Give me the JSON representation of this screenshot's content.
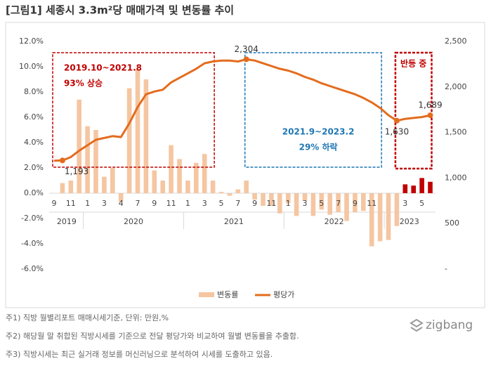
{
  "chart_data": {
    "type": "bar_line",
    "title": "[그림1] 세종시 3.3m²당 매매가격 및 변동률 추이",
    "categories": [
      "9",
      null,
      "11",
      null,
      "1",
      null,
      "3",
      null,
      "4",
      null,
      "7",
      null,
      "9",
      null,
      "11",
      null,
      "1",
      null,
      "3",
      null,
      "5",
      null,
      "7",
      null,
      "9",
      null,
      "11",
      null,
      "1",
      null,
      "3",
      null,
      "5",
      null,
      "7",
      null,
      "9",
      null,
      "11",
      null,
      null,
      null,
      "3",
      null,
      "5",
      null
    ],
    "groups": [
      {
        "label": "2019",
        "start": 0,
        "end": 3
      },
      {
        "label": "2020",
        "start": 4,
        "end": 15
      },
      {
        "label": "2021",
        "start": 16,
        "end": 27
      },
      {
        "label": "2022",
        "start": 28,
        "end": 39
      },
      {
        "label": "2023",
        "start": 40,
        "end": 45
      }
    ],
    "series": [
      {
        "name": "변동률",
        "kind": "bar",
        "color": "#f5c6a2",
        "colors": [
          "#f5c6a2",
          "#f5c6a2",
          "#f5c6a2",
          "#f5c6a2",
          "#f5c6a2",
          "#f5c6a2",
          "#f5c6a2",
          "#f5c6a2",
          "#f5c6a2",
          "#f5c6a2",
          "#f5c6a2",
          "#f5c6a2",
          "#f5c6a2",
          "#f5c6a2",
          "#f5c6a2",
          "#f5c6a2",
          "#f5c6a2",
          "#f5c6a2",
          "#f5c6a2",
          "#f5c6a2",
          "#f5c6a2",
          "#f5c6a2",
          "#f5c6a2",
          "#f5c6a2",
          "#f5c6a2",
          "#f5c6a2",
          "#f5c6a2",
          "#f5c6a2",
          "#f5c6a2",
          "#f5c6a2",
          "#f5c6a2",
          "#f5c6a2",
          "#f5c6a2",
          "#f5c6a2",
          "#f5c6a2",
          "#f5c6a2",
          "#f5c6a2",
          "#f5c6a2",
          "#f5c6a2",
          "#f5c6a2",
          "#f5c6a2",
          "#f5c6a2",
          "#c00000",
          "#c00000",
          "#c00000",
          "#c00000"
        ],
        "values": [
          0,
          0.8,
          1.0,
          7.4,
          5.3,
          5.0,
          1.3,
          2.0,
          -0.7,
          8.3,
          9.8,
          9.0,
          1.8,
          1.0,
          3.8,
          2.7,
          1.0,
          2.4,
          3.1,
          1.0,
          0.1,
          -0.2,
          0.3,
          1.0,
          -0.5,
          -1.0,
          -1.0,
          -1.6,
          -0.8,
          -1.8,
          -0.6,
          -1.8,
          -1.3,
          -1.7,
          -1.5,
          -2.2,
          -1.5,
          -1.4,
          -4.2,
          -3.8,
          -3.7,
          -2.6,
          0.7,
          0.6,
          1.2,
          0.9
        ]
      },
      {
        "name": "평당가",
        "kind": "line",
        "axis": "y2",
        "color": "#e36c1e",
        "values": [
          1190,
          1193,
          1230,
          1300,
          1360,
          1420,
          1440,
          1460,
          1450,
          1600,
          1780,
          1920,
          1950,
          1970,
          2050,
          2100,
          2150,
          2200,
          2260,
          2280,
          2290,
          2290,
          2280,
          2304,
          2290,
          2260,
          2230,
          2200,
          2180,
          2150,
          2110,
          2080,
          2040,
          2010,
          1980,
          1950,
          1920,
          1880,
          1830,
          1770,
          1690,
          1630,
          1650,
          1660,
          1670,
          1689
        ],
        "value_labels": [
          null,
          "1,193",
          null,
          null,
          null,
          null,
          null,
          null,
          null,
          null,
          null,
          null,
          null,
          null,
          null,
          null,
          null,
          null,
          null,
          null,
          null,
          null,
          null,
          "2,304",
          null,
          null,
          null,
          null,
          null,
          null,
          null,
          null,
          null,
          null,
          null,
          null,
          null,
          null,
          null,
          null,
          null,
          "1,630",
          null,
          null,
          null,
          "1,689"
        ]
      }
    ],
    "ylim": [
      -6,
      12
    ],
    "yticks": [
      {
        "value": -6,
        "label": "-6.0%"
      },
      {
        "value": -4,
        "label": "-4.0%"
      },
      {
        "value": -2,
        "label": "-2.0%"
      },
      {
        "value": 0,
        "label": "0.0%"
      },
      {
        "value": 2,
        "label": "2.0%"
      },
      {
        "value": 4,
        "label": "4.0%"
      },
      {
        "value": 6,
        "label": "6.0%"
      },
      {
        "value": 8,
        "label": "8.0%"
      },
      {
        "value": 10,
        "label": "10.0%"
      },
      {
        "value": 12,
        "label": "12.0%"
      }
    ],
    "y2lim": [
      0,
      2500
    ],
    "y2ticks": [
      {
        "value": 0,
        "label": "-"
      },
      500,
      {
        "value": 1000,
        "label": "1,000"
      },
      {
        "value": 1500,
        "label": "1,500"
      },
      {
        "value": 2000,
        "label": "2,000"
      },
      {
        "value": 2500,
        "label": "2,500"
      }
    ],
    "annotations": [
      {
        "lines": [
          "2019.10~2021.8",
          "93% 상승"
        ],
        "color": "#c00000",
        "start": 0,
        "end": 19
      },
      {
        "lines": [
          "2021.9~2023.2",
          "29% 하락"
        ],
        "color": "#1f77b4",
        "start": 23,
        "end": 39
      },
      {
        "lines": [
          "반등 중"
        ],
        "color": "#c00000",
        "start": 41,
        "end": 45
      }
    ],
    "notes": [
      "주1) 직방 월별리포트 매매시세기준,  단위: 만원,%",
      "주2) 해당월 말 취합된 직방시세를 기준으로 전달 평당가와 비교하여 월별 변동률을 추출함.",
      "주3) 직방시세는 최근 실거래 정보를 머신러닝으로 분석하여 시세를 도출하고 있음."
    ],
    "logo": "zigbang"
  }
}
